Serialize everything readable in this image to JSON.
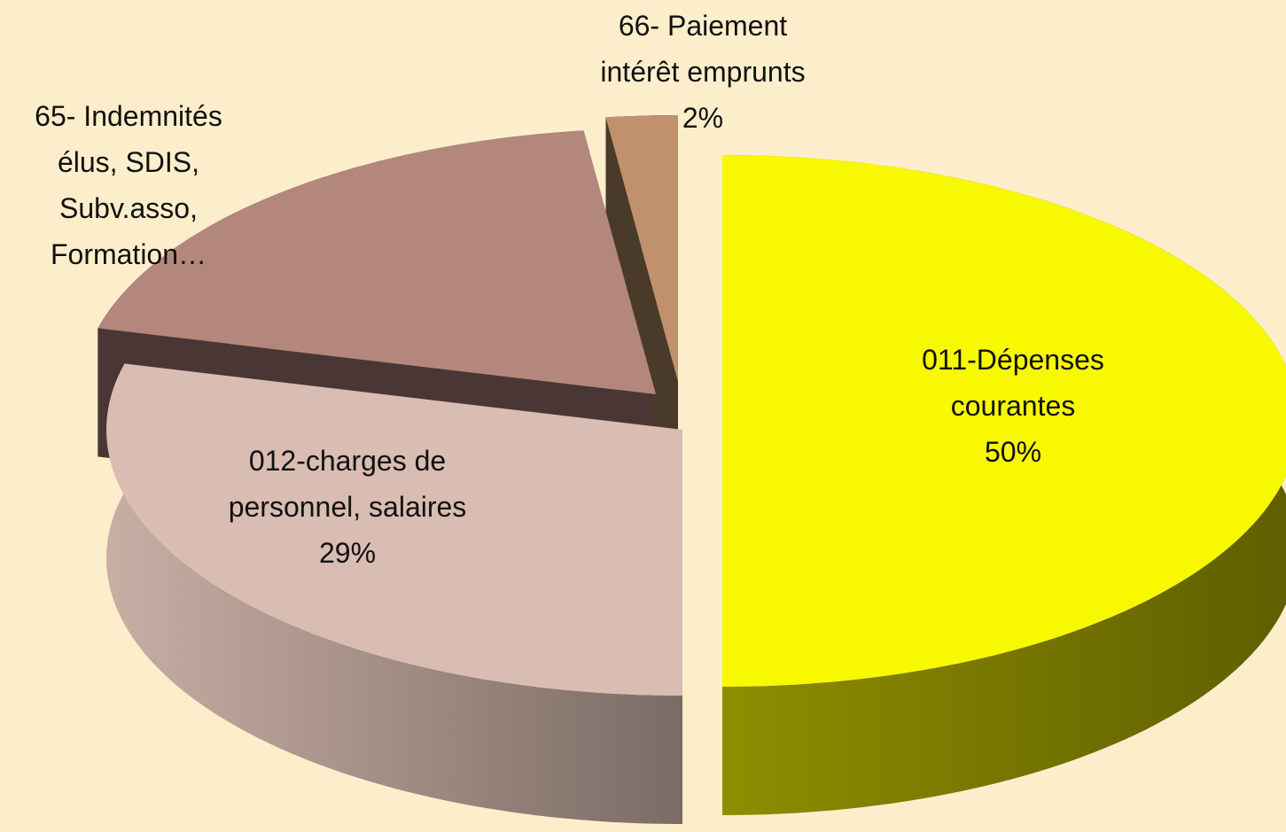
{
  "chart_data": {
    "type": "pie",
    "categories": [
      "011-Dépenses\ncourantes",
      "012-charges de\npersonnel, salaires",
      "65- Indemnités\nélus, SDIS,\nSubv.asso,\nFormation…",
      "66- Paiement\nintérêt emprunts"
    ],
    "values": [
      50,
      29,
      19,
      2
    ],
    "value_labels": [
      "50%",
      "29%",
      null,
      "2%"
    ],
    "colors": [
      "#f8f800",
      "#d9bcb2",
      "#b3877c",
      "#c0916c"
    ]
  }
}
